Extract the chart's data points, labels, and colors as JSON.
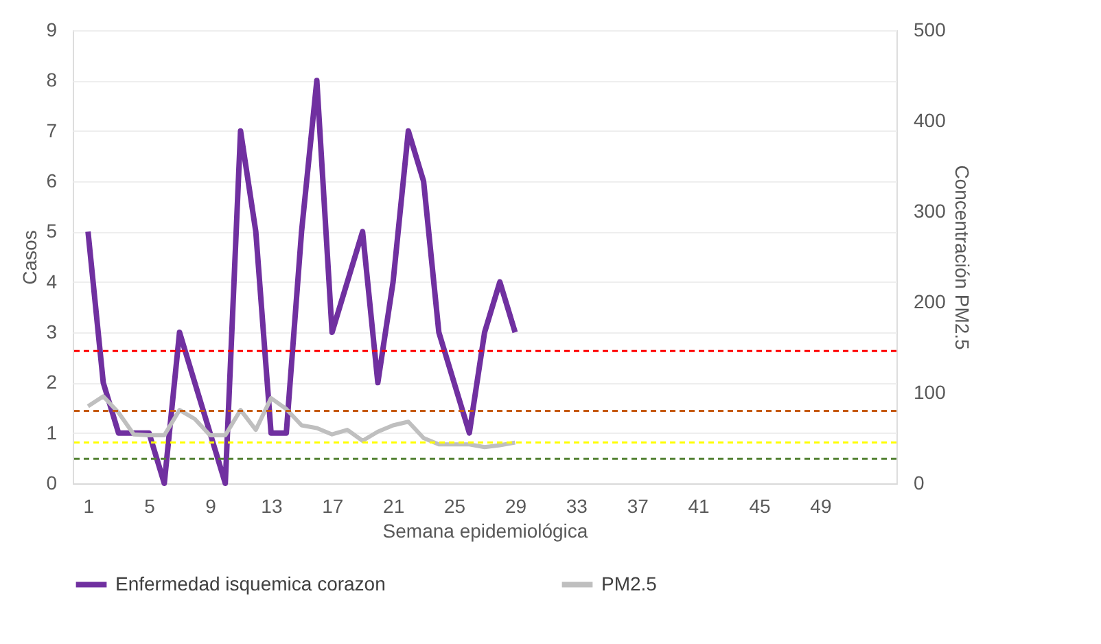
{
  "chart_data": {
    "type": "line",
    "xlabel": "Semana epidemiológica",
    "ylabel": "Casos",
    "y2label": "Concentración PM2.5",
    "xlim": [
      0,
      54
    ],
    "xticks": [
      1,
      5,
      9,
      13,
      17,
      21,
      25,
      29,
      33,
      37,
      41,
      45,
      49
    ],
    "ylim": [
      0,
      9
    ],
    "yticks": [
      0,
      1,
      2,
      3,
      4,
      5,
      6,
      7,
      8,
      9
    ],
    "y2lim": [
      0,
      500
    ],
    "y2ticks": [
      0,
      100,
      200,
      300,
      400,
      500
    ],
    "grid": "y",
    "legend": "bottom",
    "marker": "none",
    "line_style": "solid",
    "series": [
      {
        "name": "Enfermedad isquemica corazon",
        "color": "#7030a0",
        "x": [
          1,
          2,
          3,
          4,
          5,
          6,
          7,
          8,
          9,
          10,
          11,
          12,
          13,
          14,
          15,
          16,
          17,
          18,
          19,
          20,
          21,
          22,
          23,
          24,
          25,
          26,
          27,
          28,
          29
        ],
        "values": [
          5,
          2,
          1,
          1,
          1,
          0,
          3,
          2,
          1,
          0,
          7,
          5,
          1,
          1,
          5,
          8,
          3,
          4,
          5,
          2,
          4,
          7,
          6,
          3,
          2,
          1,
          3,
          4,
          3
        ]
      },
      {
        "name": "PM2.5",
        "color": "#bfbfbf",
        "axis": "y2",
        "x": [
          1,
          2,
          3,
          4,
          5,
          6,
          7,
          8,
          9,
          10,
          11,
          12,
          13,
          14,
          15,
          16,
          17,
          18,
          19,
          20,
          21,
          22,
          23,
          24,
          25,
          26,
          27,
          28,
          29
        ],
        "values": [
          85,
          96,
          78,
          54,
          53,
          53,
          81,
          71,
          53,
          53,
          81,
          59,
          94,
          82,
          64,
          61,
          54,
          59,
          47,
          57,
          64,
          68,
          50,
          43,
          43,
          43,
          40,
          42,
          45
        ]
      }
    ],
    "ref_lines": [
      {
        "axis": "y2",
        "value": 146,
        "color": "#ff0000",
        "line_style": "dashed"
      },
      {
        "axis": "y2",
        "value": 80,
        "color": "#c55a11",
        "line_style": "dashed"
      },
      {
        "axis": "y2",
        "value": 45,
        "color": "#ffff00",
        "line_style": "dashed"
      },
      {
        "axis": "y2",
        "value": 27,
        "color": "#548235",
        "line_style": "dashed"
      }
    ]
  }
}
